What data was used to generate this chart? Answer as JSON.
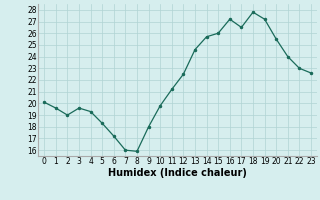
{
  "x": [
    0,
    1,
    2,
    3,
    4,
    5,
    6,
    7,
    8,
    9,
    10,
    11,
    12,
    13,
    14,
    15,
    16,
    17,
    18,
    19,
    20,
    21,
    22,
    23
  ],
  "y": [
    20.1,
    19.6,
    19.0,
    19.6,
    19.3,
    18.3,
    17.2,
    16.0,
    15.9,
    18.0,
    19.8,
    21.2,
    22.5,
    24.6,
    25.7,
    26.0,
    27.2,
    26.5,
    27.8,
    27.2,
    25.5,
    24.0,
    23.0,
    22.6
  ],
  "line_color": "#1a6b5a",
  "marker_color": "#1a6b5a",
  "bg_color": "#d6eeee",
  "grid_color": "#b0d4d4",
  "xlabel": "Humidex (Indice chaleur)",
  "ylim": [
    15.5,
    28.5
  ],
  "xlim": [
    -0.5,
    23.5
  ],
  "yticks": [
    16,
    17,
    18,
    19,
    20,
    21,
    22,
    23,
    24,
    25,
    26,
    27,
    28
  ],
  "xticks": [
    0,
    1,
    2,
    3,
    4,
    5,
    6,
    7,
    8,
    9,
    10,
    11,
    12,
    13,
    14,
    15,
    16,
    17,
    18,
    19,
    20,
    21,
    22,
    23
  ],
  "tick_fontsize": 5.5,
  "xlabel_fontsize": 7
}
